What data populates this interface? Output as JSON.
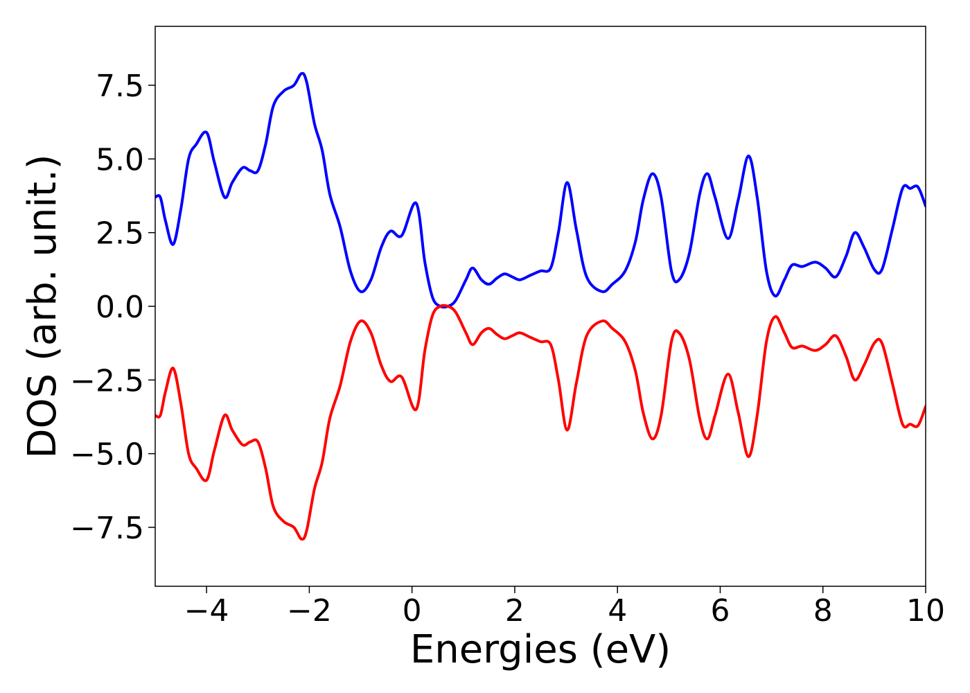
{
  "chart_data": {
    "type": "line",
    "title": "",
    "xlabel": "Energies (eV)",
    "ylabel": "DOS (arb. unit.)",
    "xlim": [
      -5,
      10
    ],
    "ylim": [
      -9.5,
      9.5
    ],
    "xticks": [
      -4,
      -2,
      0,
      2,
      4,
      6,
      8,
      10
    ],
    "xtick_labels": [
      "−4",
      "−2",
      "0",
      "2",
      "4",
      "6",
      "8",
      "10"
    ],
    "yticks": [
      7.5,
      5.0,
      2.5,
      0.0,
      -2.5,
      -5.0,
      -7.5
    ],
    "ytick_labels": [
      "7.5",
      "5.0",
      "2.5",
      "0.0",
      "−2.5",
      "−5.0",
      "−7.5"
    ],
    "grid": false,
    "legend": null,
    "series": [
      {
        "color": "#0000ff",
        "points": [
          [
            -5.0,
            3.7
          ],
          [
            -4.9,
            3.7
          ],
          [
            -4.8,
            2.9
          ],
          [
            -4.65,
            2.1
          ],
          [
            -4.5,
            3.3
          ],
          [
            -4.35,
            5.0
          ],
          [
            -4.2,
            5.5
          ],
          [
            -4.0,
            5.9
          ],
          [
            -3.85,
            4.9
          ],
          [
            -3.65,
            3.7
          ],
          [
            -3.5,
            4.2
          ],
          [
            -3.3,
            4.7
          ],
          [
            -3.15,
            4.6
          ],
          [
            -3.0,
            4.6
          ],
          [
            -2.85,
            5.5
          ],
          [
            -2.7,
            6.8
          ],
          [
            -2.5,
            7.3
          ],
          [
            -2.3,
            7.5
          ],
          [
            -2.15,
            7.9
          ],
          [
            -2.05,
            7.6
          ],
          [
            -1.9,
            6.2
          ],
          [
            -1.75,
            5.3
          ],
          [
            -1.6,
            3.8
          ],
          [
            -1.4,
            2.7
          ],
          [
            -1.2,
            1.2
          ],
          [
            -1.0,
            0.5
          ],
          [
            -0.8,
            0.9
          ],
          [
            -0.6,
            2.0
          ],
          [
            -0.42,
            2.55
          ],
          [
            -0.2,
            2.4
          ],
          [
            0.08,
            3.5
          ],
          [
            0.25,
            1.5
          ],
          [
            0.4,
            0.3
          ],
          [
            0.55,
            0.0
          ],
          [
            0.7,
            0.0
          ],
          [
            0.85,
            0.2
          ],
          [
            1.05,
            0.9
          ],
          [
            1.18,
            1.3
          ],
          [
            1.35,
            0.9
          ],
          [
            1.5,
            0.75
          ],
          [
            1.65,
            0.95
          ],
          [
            1.8,
            1.1
          ],
          [
            1.95,
            1.0
          ],
          [
            2.1,
            0.9
          ],
          [
            2.3,
            1.05
          ],
          [
            2.5,
            1.2
          ],
          [
            2.7,
            1.3
          ],
          [
            2.85,
            2.5
          ],
          [
            3.02,
            4.2
          ],
          [
            3.2,
            2.6
          ],
          [
            3.4,
            1.0
          ],
          [
            3.7,
            0.5
          ],
          [
            3.9,
            0.75
          ],
          [
            4.15,
            1.2
          ],
          [
            4.35,
            2.2
          ],
          [
            4.5,
            3.6
          ],
          [
            4.68,
            4.5
          ],
          [
            4.85,
            3.7
          ],
          [
            5.05,
            1.2
          ],
          [
            5.2,
            0.9
          ],
          [
            5.4,
            1.8
          ],
          [
            5.6,
            3.8
          ],
          [
            5.75,
            4.5
          ],
          [
            5.9,
            3.7
          ],
          [
            6.15,
            2.3
          ],
          [
            6.35,
            3.6
          ],
          [
            6.55,
            5.1
          ],
          [
            6.72,
            3.7
          ],
          [
            6.9,
            1.2
          ],
          [
            7.07,
            0.35
          ],
          [
            7.25,
            0.9
          ],
          [
            7.4,
            1.4
          ],
          [
            7.6,
            1.35
          ],
          [
            7.85,
            1.5
          ],
          [
            8.05,
            1.3
          ],
          [
            8.25,
            1.0
          ],
          [
            8.45,
            1.7
          ],
          [
            8.62,
            2.5
          ],
          [
            8.8,
            2.0
          ],
          [
            9.0,
            1.25
          ],
          [
            9.15,
            1.25
          ],
          [
            9.35,
            2.6
          ],
          [
            9.55,
            4.0
          ],
          [
            9.7,
            4.0
          ],
          [
            9.85,
            4.05
          ],
          [
            10.0,
            3.4
          ]
        ]
      },
      {
        "color": "#ff0000",
        "points": [
          [
            -5.0,
            -3.7
          ],
          [
            -4.9,
            -3.7
          ],
          [
            -4.8,
            -2.9
          ],
          [
            -4.65,
            -2.1
          ],
          [
            -4.5,
            -3.3
          ],
          [
            -4.35,
            -5.0
          ],
          [
            -4.2,
            -5.5
          ],
          [
            -4.0,
            -5.9
          ],
          [
            -3.85,
            -4.9
          ],
          [
            -3.65,
            -3.7
          ],
          [
            -3.5,
            -4.2
          ],
          [
            -3.3,
            -4.7
          ],
          [
            -3.15,
            -4.6
          ],
          [
            -3.0,
            -4.6
          ],
          [
            -2.85,
            -5.5
          ],
          [
            -2.7,
            -6.8
          ],
          [
            -2.5,
            -7.3
          ],
          [
            -2.3,
            -7.5
          ],
          [
            -2.15,
            -7.9
          ],
          [
            -2.05,
            -7.6
          ],
          [
            -1.9,
            -6.2
          ],
          [
            -1.75,
            -5.3
          ],
          [
            -1.6,
            -3.8
          ],
          [
            -1.4,
            -2.7
          ],
          [
            -1.2,
            -1.2
          ],
          [
            -1.0,
            -0.5
          ],
          [
            -0.8,
            -0.9
          ],
          [
            -0.6,
            -2.0
          ],
          [
            -0.42,
            -2.55
          ],
          [
            -0.2,
            -2.4
          ],
          [
            0.08,
            -3.5
          ],
          [
            0.25,
            -1.5
          ],
          [
            0.4,
            -0.3
          ],
          [
            0.55,
            0.0
          ],
          [
            0.7,
            0.0
          ],
          [
            0.85,
            -0.2
          ],
          [
            1.05,
            -0.9
          ],
          [
            1.18,
            -1.3
          ],
          [
            1.35,
            -0.9
          ],
          [
            1.5,
            -0.75
          ],
          [
            1.65,
            -0.95
          ],
          [
            1.8,
            -1.1
          ],
          [
            1.95,
            -1.0
          ],
          [
            2.1,
            -0.9
          ],
          [
            2.3,
            -1.05
          ],
          [
            2.5,
            -1.2
          ],
          [
            2.7,
            -1.3
          ],
          [
            2.85,
            -2.5
          ],
          [
            3.02,
            -4.2
          ],
          [
            3.2,
            -2.6
          ],
          [
            3.4,
            -1.0
          ],
          [
            3.7,
            -0.5
          ],
          [
            3.9,
            -0.75
          ],
          [
            4.15,
            -1.2
          ],
          [
            4.35,
            -2.2
          ],
          [
            4.5,
            -3.6
          ],
          [
            4.68,
            -4.5
          ],
          [
            4.85,
            -3.7
          ],
          [
            5.05,
            -1.2
          ],
          [
            5.2,
            -0.9
          ],
          [
            5.4,
            -1.8
          ],
          [
            5.6,
            -3.8
          ],
          [
            5.75,
            -4.5
          ],
          [
            5.9,
            -3.7
          ],
          [
            6.15,
            -2.3
          ],
          [
            6.35,
            -3.6
          ],
          [
            6.55,
            -5.1
          ],
          [
            6.72,
            -3.7
          ],
          [
            6.9,
            -1.2
          ],
          [
            7.07,
            -0.35
          ],
          [
            7.25,
            -0.9
          ],
          [
            7.4,
            -1.4
          ],
          [
            7.6,
            -1.35
          ],
          [
            7.85,
            -1.5
          ],
          [
            8.05,
            -1.3
          ],
          [
            8.25,
            -1.0
          ],
          [
            8.45,
            -1.7
          ],
          [
            8.62,
            -2.5
          ],
          [
            8.8,
            -2.0
          ],
          [
            9.0,
            -1.25
          ],
          [
            9.15,
            -1.25
          ],
          [
            9.35,
            -2.6
          ],
          [
            9.55,
            -4.0
          ],
          [
            9.7,
            -4.0
          ],
          [
            9.85,
            -4.05
          ],
          [
            10.0,
            -3.4
          ]
        ]
      }
    ]
  }
}
